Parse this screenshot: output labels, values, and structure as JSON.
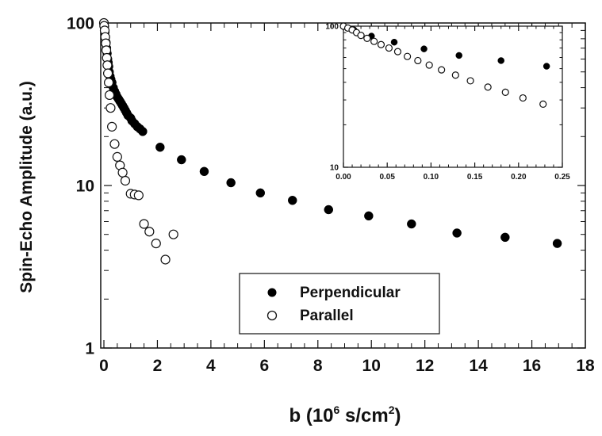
{
  "chart_data": {
    "type": "scatter",
    "main": {
      "xlabel": {
        "pre": "b (10",
        "sup1": "6",
        "mid": " s/cm",
        "sup2": "2",
        "post": ")"
      },
      "ylabel": "Spin-Echo Amplitude (a.u.)",
      "xlim": [
        0,
        18
      ],
      "ylim": [
        1,
        100
      ],
      "yscale": "log",
      "xticks": [
        "0",
        "2",
        "4",
        "6",
        "8",
        "10",
        "12",
        "14",
        "16",
        "18"
      ],
      "yticks": [
        "1",
        "10",
        "100"
      ],
      "legend": {
        "placement": "bottom-center",
        "items": [
          "Perpendicular",
          "Parallel"
        ]
      },
      "series": [
        {
          "name": "Perpendicular",
          "marker": "filled-circle",
          "x": [
            0.0,
            0.02,
            0.04,
            0.06,
            0.08,
            0.1,
            0.12,
            0.14,
            0.16,
            0.18,
            0.2,
            0.23,
            0.26,
            0.3,
            0.35,
            0.4,
            0.45,
            0.5,
            0.55,
            0.6,
            0.65,
            0.7,
            0.75,
            0.8,
            0.85,
            0.9,
            1.0,
            1.05,
            1.15,
            1.25,
            1.35,
            1.45,
            2.1,
            2.9,
            3.75,
            4.75,
            5.85,
            7.05,
            8.4,
            9.9,
            11.5,
            13.2,
            15.0,
            16.95
          ],
          "y": [
            99,
            95,
            88,
            82,
            76,
            70,
            65,
            60,
            57,
            54,
            50,
            47,
            45,
            43,
            40,
            38,
            36.5,
            35,
            34,
            33,
            32,
            31,
            30,
            29,
            28,
            27,
            26,
            25,
            24,
            23,
            22.3,
            21.5,
            17.2,
            14.4,
            12.2,
            10.4,
            9.0,
            8.1,
            7.1,
            6.5,
            5.8,
            5.1,
            4.8,
            4.4
          ]
        },
        {
          "name": "Parallel",
          "marker": "open-circle",
          "x": [
            0.0,
            0.01,
            0.03,
            0.05,
            0.07,
            0.09,
            0.11,
            0.13,
            0.15,
            0.18,
            0.21,
            0.25,
            0.3,
            0.4,
            0.5,
            0.6,
            0.7,
            0.8,
            1.0,
            1.15,
            1.3,
            1.5,
            1.7,
            1.95,
            2.3,
            2.6
          ],
          "y": [
            100,
            96,
            90,
            82,
            75,
            68,
            61,
            55,
            49,
            43,
            36,
            30,
            23,
            18,
            15,
            13.3,
            12,
            10.7,
            8.9,
            8.8,
            8.7,
            5.8,
            5.2,
            4.4,
            3.5,
            5.0
          ]
        }
      ]
    },
    "inset": {
      "xlim": [
        0,
        0.25
      ],
      "ylim": [
        10,
        100
      ],
      "yscale": "log",
      "xticks": [
        "0.00",
        "0.05",
        "0.10",
        "0.15",
        "0.20",
        "0.25"
      ],
      "yticks": [
        "10",
        "100"
      ],
      "series": [
        {
          "name": "Perpendicular",
          "marker": "filled-circle",
          "x": [
            0.0,
            0.012,
            0.032,
            0.058,
            0.092,
            0.132,
            0.18,
            0.232
          ],
          "y": [
            100,
            94,
            85,
            77,
            69,
            62,
            57,
            52
          ]
        },
        {
          "name": "Parallel",
          "marker": "open-circle",
          "x": [
            0.0,
            0.005,
            0.01,
            0.015,
            0.02,
            0.027,
            0.035,
            0.043,
            0.052,
            0.062,
            0.073,
            0.085,
            0.098,
            0.112,
            0.128,
            0.145,
            0.165,
            0.185,
            0.205,
            0.228
          ],
          "y": [
            100,
            97,
            94,
            90,
            86,
            82,
            78,
            74,
            70,
            66,
            61,
            57,
            53,
            49,
            45,
            41,
            37,
            34,
            31,
            28
          ]
        }
      ]
    }
  },
  "colors": {
    "filled_marker": "#000000",
    "open_marker_edge": "#111111",
    "axis": "#111111"
  }
}
